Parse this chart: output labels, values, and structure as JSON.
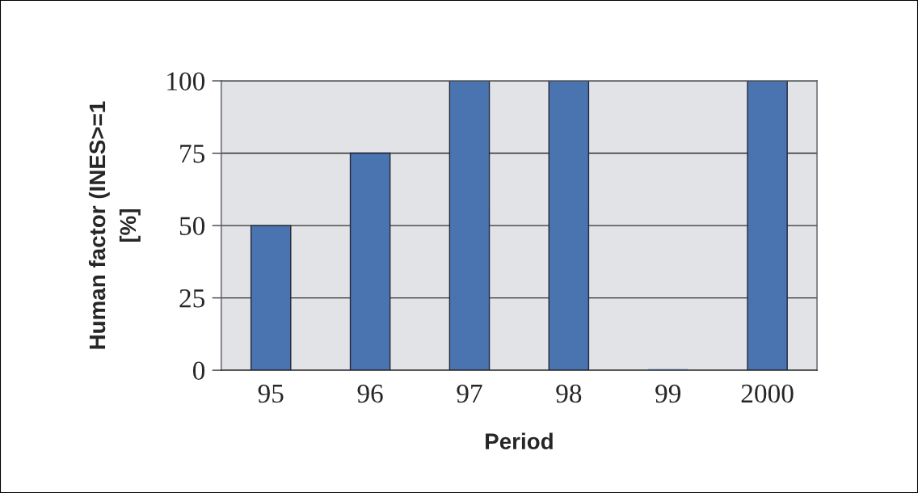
{
  "chart_data": {
    "type": "bar",
    "xlabel": "Period",
    "ylabel": "Human factor (INES>=1\n[%]",
    "categories": [
      "95",
      "96",
      "97",
      "98",
      "99",
      "2000"
    ],
    "values": [
      50,
      75,
      100,
      100,
      0,
      100
    ],
    "color": "#4a74b0",
    "ylim": [
      0,
      100
    ],
    "yticks": [
      0,
      25,
      50,
      75,
      100
    ],
    "grid": "y",
    "legend": false
  }
}
